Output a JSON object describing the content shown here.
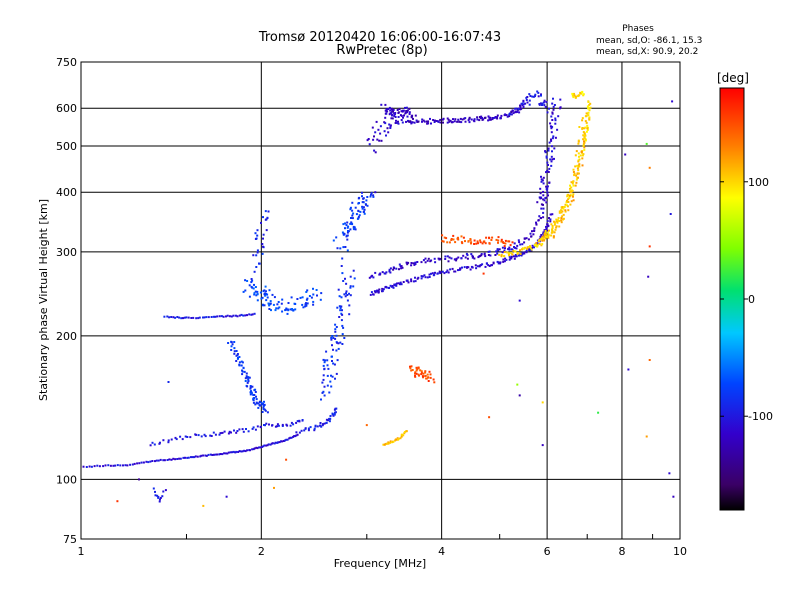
{
  "chart_data": {
    "type": "scatter",
    "title": "Tromsø 20120420 16:06:00-16:07:43",
    "subtitle": "RwPretec (8p)",
    "phase_stats": {
      "heading": "Phases",
      "line_o": "mean, sd,O: -86.1, 15.3",
      "line_x": "mean, sd,X:  90.9, 20.2"
    },
    "xlabel": "Frequency [MHz]",
    "ylabel": "Stationary phase Virtual Height [km]",
    "x_scale": "log",
    "y_scale": "log",
    "xlim": [
      1,
      10
    ],
    "ylim": [
      75,
      750
    ],
    "x_ticks": [
      {
        "v": 1,
        "label": "1"
      },
      {
        "v": 2,
        "label": "2"
      },
      {
        "v": 4,
        "label": "4"
      },
      {
        "v": 6,
        "label": "6"
      },
      {
        "v": 8,
        "label": "8"
      },
      {
        "v": 10,
        "label": "10"
      }
    ],
    "y_ticks": [
      {
        "v": 75,
        "label": "75"
      },
      {
        "v": 100,
        "label": "100"
      },
      {
        "v": 200,
        "label": "200"
      },
      {
        "v": 300,
        "label": "300"
      },
      {
        "v": 400,
        "label": "400"
      },
      {
        "v": 500,
        "label": "500"
      },
      {
        "v": 600,
        "label": "600"
      },
      {
        "v": 750,
        "label": "750"
      }
    ],
    "grid": true,
    "colorbar": {
      "label": "[deg]",
      "ticks": [
        {
          "v": 100,
          "label": "100"
        },
        {
          "v": 0,
          "label": "0"
        },
        {
          "v": -100,
          "label": "-100"
        }
      ],
      "range": [
        -180,
        180
      ]
    },
    "traces": [
      {
        "f": [
          1.0,
          1.1,
          1.2,
          1.3,
          1.4,
          1.5,
          1.6,
          1.7,
          1.8,
          1.9,
          2.0,
          2.1,
          2.2,
          2.3
        ],
        "h": [
          106,
          107,
          107,
          109,
          110,
          111,
          112,
          113,
          114,
          115,
          117,
          119,
          121,
          124
        ],
        "phase": -105,
        "n": 120,
        "jitter": 0.8
      },
      {
        "f": [
          1.3,
          1.45,
          1.6,
          1.75,
          1.9,
          2.05,
          2.2,
          2.35
        ],
        "h": [
          118,
          122,
          124,
          125,
          127,
          130,
          130,
          133
        ],
        "phase": -100,
        "n": 70,
        "jitter": 3
      },
      {
        "f": [
          1.38,
          1.5,
          1.65,
          1.8,
          1.95
        ],
        "h": [
          219,
          218,
          219,
          220,
          222
        ],
        "phase": -100,
        "n": 45,
        "jitter": 1
      },
      {
        "f": [
          1.78,
          1.82,
          1.86,
          1.9,
          1.93,
          1.96,
          2.0,
          2.04
        ],
        "h": [
          195,
          182,
          170,
          160,
          152,
          147,
          143,
          140
        ],
        "phase": -80,
        "n": 90,
        "jitter": 6
      },
      {
        "f": [
          1.9,
          1.95,
          2.0,
          2.05,
          2.1,
          2.2,
          2.3,
          2.4,
          2.5
        ],
        "h": [
          255,
          250,
          245,
          238,
          232,
          230,
          235,
          240,
          245
        ],
        "phase": -75,
        "n": 100,
        "jitter": 12
      },
      {
        "f": [
          1.95,
          1.98,
          2.0,
          2.03
        ],
        "h": [
          270,
          300,
          330,
          360
        ],
        "phase": -90,
        "n": 30,
        "jitter": 10
      },
      {
        "f": [
          2.55,
          2.6,
          2.65,
          2.7,
          2.75,
          2.8
        ],
        "h": [
          150,
          170,
          190,
          210,
          240,
          270
        ],
        "phase": -85,
        "n": 90,
        "jitter": 15
      },
      {
        "f": [
          2.7,
          2.78,
          2.85,
          2.9,
          2.95,
          3.0
        ],
        "h": [
          300,
          330,
          350,
          370,
          380,
          390
        ],
        "phase": -80,
        "n": 80,
        "jitter": 15
      },
      {
        "f": [
          2.3,
          2.45,
          2.55,
          2.62,
          2.68
        ],
        "h": [
          126,
          128,
          131,
          135,
          140
        ],
        "phase": -95,
        "n": 40,
        "jitter": 3
      },
      {
        "f": [
          3.05,
          3.2,
          3.4,
          3.7,
          4.0,
          4.4,
          4.8,
          5.2,
          5.5,
          5.75,
          5.95,
          6.1
        ],
        "h": [
          245,
          250,
          257,
          265,
          272,
          277,
          282,
          290,
          298,
          310,
          330,
          360
        ],
        "phase": -110,
        "n": 180,
        "jitter": 3
      },
      {
        "f": [
          3.05,
          3.3,
          3.6,
          4.0,
          4.4,
          4.8,
          5.2,
          5.6,
          5.9,
          6.0
        ],
        "h": [
          265,
          275,
          285,
          290,
          293,
          297,
          305,
          320,
          360,
          420
        ],
        "phase": -115,
        "n": 150,
        "jitter": 5
      },
      {
        "f": [
          5.85,
          5.95,
          6.05,
          6.15,
          6.25
        ],
        "h": [
          380,
          430,
          480,
          550,
          620
        ],
        "phase": -110,
        "n": 70,
        "jitter": 10
      },
      {
        "f": [
          3.05,
          3.15,
          3.3,
          3.4,
          3.5
        ],
        "h": [
          500,
          540,
          570,
          580,
          585
        ],
        "phase": -115,
        "n": 60,
        "jitter": 15
      },
      {
        "f": [
          3.5,
          3.8,
          4.1,
          4.4,
          4.7,
          5.0,
          5.3,
          5.5
        ],
        "h": [
          560,
          563,
          565,
          567,
          570,
          575,
          590,
          610
        ],
        "phase": -120,
        "n": 120,
        "jitter": 4
      },
      {
        "f": [
          3.2,
          3.3,
          3.45,
          3.6
        ],
        "h": [
          600,
          590,
          585,
          575
        ],
        "phase": -120,
        "n": 40,
        "jitter": 6
      },
      {
        "f": [
          5.2,
          5.5,
          5.7,
          5.9,
          6.0
        ],
        "h": [
          580,
          620,
          640,
          620,
          590
        ],
        "phase": -100,
        "n": 40,
        "jitter": 8
      },
      {
        "f": [
          5.0,
          5.4,
          5.8,
          6.1,
          6.4,
          6.7,
          6.9,
          7.0,
          7.05
        ],
        "h": [
          295,
          300,
          310,
          330,
          370,
          430,
          500,
          560,
          620
        ],
        "phase": 100,
        "n": 150,
        "jitter": 4
      },
      {
        "f": [
          5.8,
          6.1,
          6.4,
          6.6,
          6.8,
          6.9
        ],
        "h": [
          315,
          330,
          360,
          400,
          470,
          560
        ],
        "phase": 110,
        "n": 100,
        "jitter": 8
      },
      {
        "f": [
          4.0,
          4.3,
          4.6,
          4.9,
          5.2
        ],
        "h": [
          320,
          318,
          315,
          318,
          310
        ],
        "phase": 150,
        "n": 60,
        "jitter": 6
      },
      {
        "f": [
          3.55,
          3.65,
          3.75,
          3.85
        ],
        "h": [
          170,
          168,
          165,
          162
        ],
        "phase": 150,
        "n": 40,
        "jitter": 8
      },
      {
        "f": [
          3.2,
          3.3,
          3.4,
          3.5
        ],
        "h": [
          118,
          120,
          122,
          126
        ],
        "phase": 110,
        "n": 30,
        "jitter": 2
      },
      {
        "f": [
          6.6,
          6.7,
          6.8,
          6.9
        ],
        "h": [
          640,
          635,
          640,
          645
        ],
        "phase": 100,
        "n": 20,
        "jitter": 3
      },
      {
        "f": [
          1.32,
          1.34,
          1.36,
          1.38
        ],
        "h": [
          95,
          92,
          90,
          95
        ],
        "phase": -100,
        "n": 12,
        "jitter": 3
      }
    ],
    "scatter": [
      {
        "f": 1.15,
        "h": 90,
        "phase": 160
      },
      {
        "f": 1.6,
        "h": 88,
        "phase": 110
      },
      {
        "f": 2.1,
        "h": 96,
        "phase": 120
      },
      {
        "f": 1.25,
        "h": 100,
        "phase": -140
      },
      {
        "f": 1.4,
        "h": 160,
        "phase": -90
      },
      {
        "f": 1.75,
        "h": 92,
        "phase": -110
      },
      {
        "f": 2.2,
        "h": 110,
        "phase": 150
      },
      {
        "f": 3.1,
        "h": 400,
        "phase": -110
      },
      {
        "f": 3.0,
        "h": 130,
        "phase": 140
      },
      {
        "f": 4.7,
        "h": 270,
        "phase": 160
      },
      {
        "f": 4.8,
        "h": 135,
        "phase": 150
      },
      {
        "f": 5.4,
        "h": 150,
        "phase": -130
      },
      {
        "f": 5.9,
        "h": 118,
        "phase": -120
      },
      {
        "f": 5.4,
        "h": 237,
        "phase": -110
      },
      {
        "f": 5.9,
        "h": 145,
        "phase": 100
      },
      {
        "f": 5.35,
        "h": 158,
        "phase": 50
      },
      {
        "f": 7.3,
        "h": 138,
        "phase": 20
      },
      {
        "f": 8.1,
        "h": 480,
        "phase": -120
      },
      {
        "f": 8.2,
        "h": 170,
        "phase": -110
      },
      {
        "f": 8.8,
        "h": 505,
        "phase": 30
      },
      {
        "f": 8.9,
        "h": 450,
        "phase": 130
      },
      {
        "f": 8.9,
        "h": 308,
        "phase": 160
      },
      {
        "f": 8.9,
        "h": 178,
        "phase": 140
      },
      {
        "f": 8.85,
        "h": 266,
        "phase": -120
      },
      {
        "f": 8.8,
        "h": 123,
        "phase": 120
      },
      {
        "f": 9.7,
        "h": 620,
        "phase": -110
      },
      {
        "f": 9.65,
        "h": 360,
        "phase": -100
      },
      {
        "f": 9.6,
        "h": 103,
        "phase": -110
      },
      {
        "f": 9.75,
        "h": 92,
        "phase": -120
      }
    ]
  }
}
